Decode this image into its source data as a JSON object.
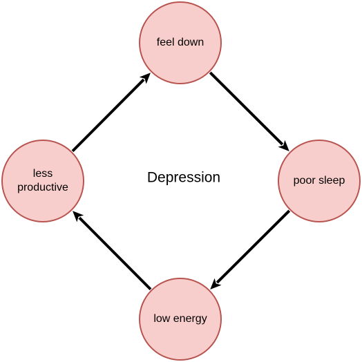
{
  "diagram": {
    "center_label": "Depression",
    "colors": {
      "node_fill": "#f8cecc",
      "node_stroke": "#b85450",
      "edge": "#000000",
      "text": "#000000"
    },
    "nodes": [
      {
        "id": "feel-down",
        "lines": [
          "feel down"
        ]
      },
      {
        "id": "poor-sleep",
        "lines": [
          "poor sleep"
        ]
      },
      {
        "id": "low-energy",
        "lines": [
          "low energy"
        ]
      },
      {
        "id": "less-productive",
        "lines": [
          "less",
          "productive"
        ]
      }
    ],
    "edges": [
      {
        "from": "feel-down",
        "to": "poor-sleep"
      },
      {
        "from": "poor-sleep",
        "to": "low-energy"
      },
      {
        "from": "low-energy",
        "to": "less-productive"
      },
      {
        "from": "less-productive",
        "to": "feel-down"
      }
    ]
  }
}
